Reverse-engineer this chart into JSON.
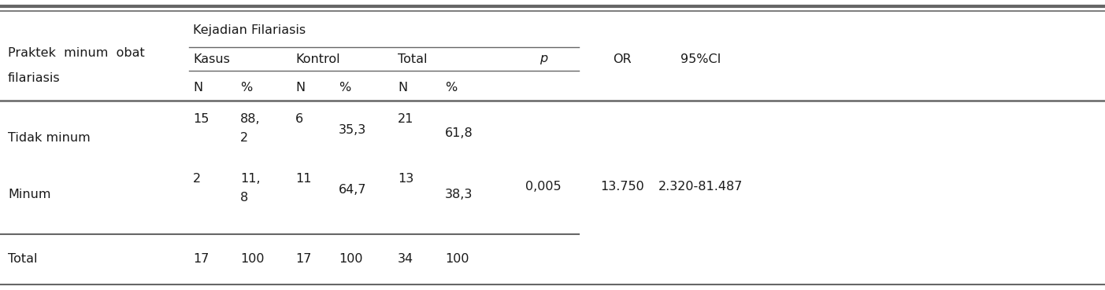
{
  "group_header": "Kejadian Filariasis",
  "col1_label_line1": "Praktek  minum  obat",
  "col1_label_line2": "filariasis",
  "sub_headers_left": [
    "Kasus",
    "Kontrol",
    "Total"
  ],
  "sub_sub_headers": [
    "N",
    "%",
    "N",
    "%",
    "N",
    "%"
  ],
  "stat_headers": [
    "p",
    "OR",
    "95%CI"
  ],
  "row1_label": "Tidak minum",
  "row1_vals": [
    "15",
    "88,",
    "2",
    "6",
    "35,3",
    "21",
    "61,8"
  ],
  "row2_label": "Minum",
  "row2_vals": [
    "2",
    "11,",
    "8",
    "11",
    "64,7",
    "13",
    "38,3"
  ],
  "row2_stats": [
    "0,005",
    "13.750",
    "2.320-81.487"
  ],
  "total_vals": [
    "17",
    "100",
    "17",
    "100",
    "34",
    "100"
  ],
  "bg_color": "#ffffff",
  "text_color": "#1a1a1a",
  "line_color": "#666666",
  "fs": 11.5
}
